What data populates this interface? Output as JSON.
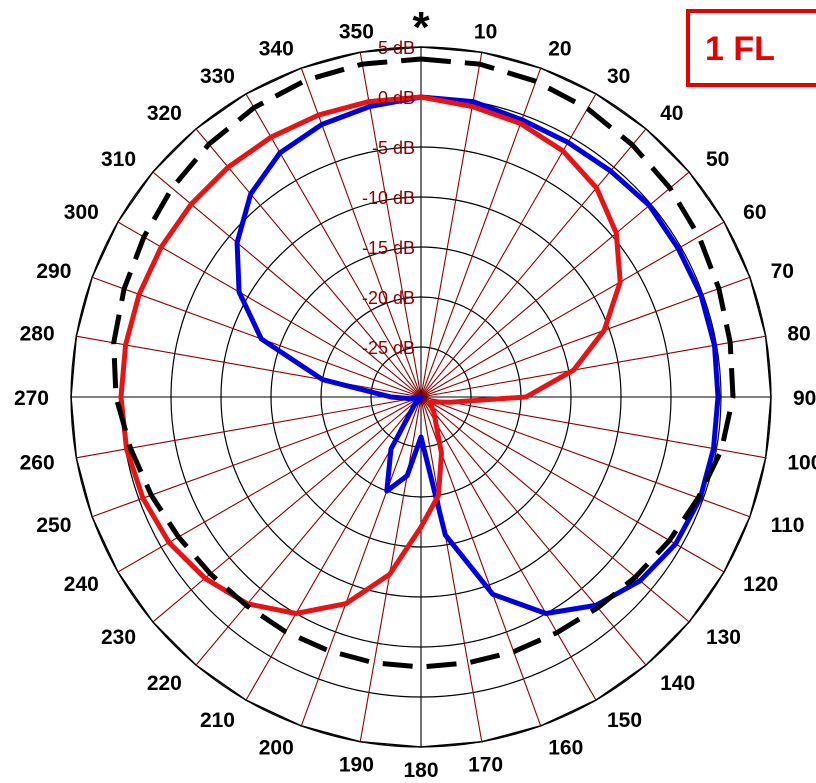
{
  "badge": {
    "text": "1 FL"
  },
  "marker": {
    "symbol": "*"
  },
  "chart_data": {
    "type": "polar-line",
    "title": "",
    "angle_labels": [
      "10",
      "20",
      "30",
      "40",
      "50",
      "60",
      "70",
      "80",
      "90",
      "100",
      "110",
      "120",
      "130",
      "140",
      "150",
      "160",
      "170",
      "180",
      "190",
      "200",
      "210",
      "220",
      "230",
      "240",
      "250",
      "260",
      "270",
      "280",
      "290",
      "300",
      "310",
      "320",
      "330",
      "340",
      "350"
    ],
    "r_labels": [
      "5 dB",
      "0 dB",
      "-5 dB",
      "-10 dB",
      "-15 dB",
      "-20 dB",
      "-25 dB"
    ],
    "r_min_db": -30,
    "r_max_db": 5,
    "ring_step_db": 5,
    "spoke_step_deg": 10,
    "colors": {
      "grid_rings": "#000000",
      "grid_spokes": "#8b0000",
      "blue": "#0000dd",
      "red": "#e61414",
      "dashed": "#000000"
    },
    "series": [
      {
        "color": "#0000dd",
        "style": "solid",
        "points": [
          [
            0,
            0
          ],
          [
            10,
            0
          ],
          [
            20,
            -0.5
          ],
          [
            30,
            -0.6
          ],
          [
            40,
            -0.5
          ],
          [
            50,
            -0.2
          ],
          [
            60,
            -0.3
          ],
          [
            70,
            -0.2
          ],
          [
            80,
            -0.2
          ],
          [
            90,
            -0.3
          ],
          [
            100,
            -0.3
          ],
          [
            110,
            -0.3
          ],
          [
            120,
            -0.6
          ],
          [
            130,
            -1.4
          ],
          [
            140,
            -2.8
          ],
          [
            150,
            -5
          ],
          [
            160,
            -9
          ],
          [
            170,
            -16
          ],
          [
            180,
            -26
          ],
          [
            190,
            -22
          ],
          [
            200,
            -20
          ],
          [
            210,
            -24
          ],
          [
            220,
            -29
          ],
          [
            240,
            -30
          ],
          [
            260,
            -29
          ],
          [
            270,
            -27
          ],
          [
            280,
            -20
          ],
          [
            290,
            -13
          ],
          [
            300,
            -9
          ],
          [
            310,
            -6
          ],
          [
            320,
            -3.5
          ],
          [
            330,
            -1.8
          ],
          [
            340,
            -1
          ],
          [
            350,
            -0.5
          ],
          [
            360,
            0
          ]
        ]
      },
      {
        "color": "#e61414",
        "style": "solid",
        "points": [
          [
            0,
            0
          ],
          [
            10,
            -0.5
          ],
          [
            20,
            -0.9
          ],
          [
            30,
            -1.6
          ],
          [
            40,
            -2.7
          ],
          [
            50,
            -4.5
          ],
          [
            60,
            -7
          ],
          [
            70,
            -10.5
          ],
          [
            80,
            -14.5
          ],
          [
            90,
            -19.5
          ],
          [
            100,
            -27
          ],
          [
            120,
            -29
          ],
          [
            140,
            -28
          ],
          [
            160,
            -24
          ],
          [
            170,
            -20
          ],
          [
            180,
            -17
          ],
          [
            190,
            -12
          ],
          [
            200,
            -8
          ],
          [
            210,
            -5
          ],
          [
            220,
            -3
          ],
          [
            230,
            -1.8
          ],
          [
            240,
            -0.9
          ],
          [
            250,
            -0.4
          ],
          [
            260,
            -0.1
          ],
          [
            270,
            0
          ],
          [
            280,
            0
          ],
          [
            290,
            0
          ],
          [
            300,
            0
          ],
          [
            310,
            0
          ],
          [
            320,
            0
          ],
          [
            330,
            0
          ],
          [
            340,
            0
          ],
          [
            350,
            0
          ],
          [
            360,
            0
          ]
        ]
      },
      {
        "color": "#000000",
        "style": "dashed",
        "points": [
          [
            0,
            3.8
          ],
          [
            10,
            3.8
          ],
          [
            20,
            3.6
          ],
          [
            30,
            3.3
          ],
          [
            40,
            2.9
          ],
          [
            50,
            2.5
          ],
          [
            60,
            2.1
          ],
          [
            70,
            1.7
          ],
          [
            80,
            1.4
          ],
          [
            90,
            1.2
          ],
          [
            100,
            0.5
          ],
          [
            110,
            -0.5
          ],
          [
            120,
            -1.3
          ],
          [
            130,
            -2
          ],
          [
            140,
            -2.5
          ],
          [
            150,
            -2.8
          ],
          [
            160,
            -2.9
          ],
          [
            170,
            -3
          ],
          [
            180,
            -3
          ],
          [
            190,
            -3
          ],
          [
            200,
            -3
          ],
          [
            210,
            -2.9
          ],
          [
            220,
            -2.8
          ],
          [
            230,
            -2.5
          ],
          [
            240,
            -2
          ],
          [
            250,
            -1.3
          ],
          [
            260,
            -0.5
          ],
          [
            270,
            0.5
          ],
          [
            280,
            1.2
          ],
          [
            290,
            1.6
          ],
          [
            300,
            2
          ],
          [
            310,
            2.5
          ],
          [
            320,
            3
          ],
          [
            330,
            3.4
          ],
          [
            340,
            3.7
          ],
          [
            350,
            3.8
          ],
          [
            360,
            3.8
          ]
        ]
      }
    ]
  }
}
